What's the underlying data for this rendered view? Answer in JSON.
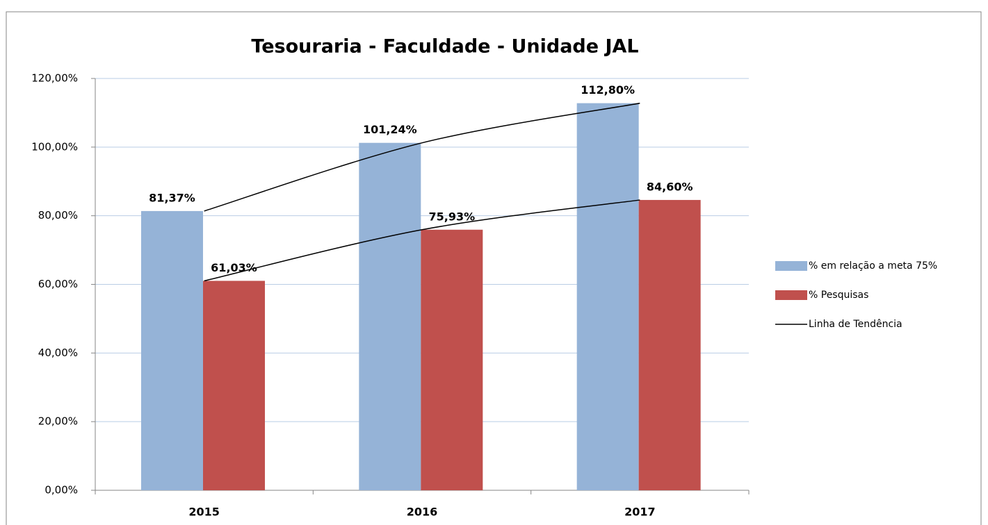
{
  "chart_data": {
    "type": "bar",
    "title": "Tesouraria  - Faculdade - Unidade JAL",
    "categories": [
      "2015",
      "2016",
      "2017"
    ],
    "series": [
      {
        "name": "% em relação a meta 75%",
        "color": "#95b3d7",
        "values": [
          81.37,
          101.24,
          112.8
        ],
        "value_labels": [
          "81,37%",
          "101,24%",
          "112,80%"
        ]
      },
      {
        "name": "% Pesquisas",
        "color": "#c0504d",
        "values": [
          61.03,
          75.93,
          84.6
        ],
        "value_labels": [
          "61,03%",
          "75,93%",
          "84,60%"
        ]
      }
    ],
    "trendline": {
      "name": "Linha de Tendência",
      "color": "#000000"
    },
    "ylim": [
      0,
      120
    ],
    "yticks": [
      {
        "value": 0,
        "label": "0,00%"
      },
      {
        "value": 20,
        "label": "20,00%"
      },
      {
        "value": 40,
        "label": "40,00%"
      },
      {
        "value": 60,
        "label": "60,00%"
      },
      {
        "value": 80,
        "label": "80,00%"
      },
      {
        "value": 100,
        "label": "100,00%"
      },
      {
        "value": 120,
        "label": "120,00%"
      }
    ],
    "grid": true,
    "legend": "right"
  }
}
